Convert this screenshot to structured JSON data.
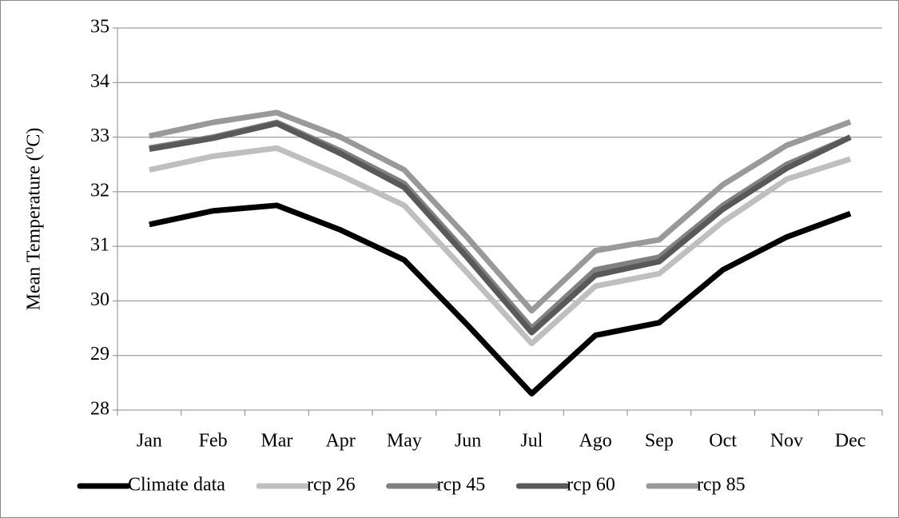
{
  "chart_data": {
    "type": "line",
    "y_label": "Mean Temperature (⁰C)",
    "categories": [
      "Jan",
      "Feb",
      "Mar",
      "Apr",
      "May",
      "Jun",
      "Jul",
      "Ago",
      "Sep",
      "Oct",
      "Nov",
      "Dec"
    ],
    "series": [
      {
        "name": "Climate data",
        "color": "#000000",
        "values": [
          31.4,
          31.65,
          31.75,
          31.3,
          30.75,
          29.55,
          28.3,
          29.37,
          29.6,
          30.57,
          31.17,
          31.6
        ]
      },
      {
        "name": "rcp 26",
        "color": "#bfbfbf",
        "values": [
          32.4,
          32.65,
          32.8,
          32.3,
          31.75,
          30.5,
          29.22,
          30.27,
          30.5,
          31.45,
          32.23,
          32.6
        ]
      },
      {
        "name": "rcp 45",
        "color": "#808080",
        "values": [
          32.8,
          33.0,
          33.27,
          32.75,
          32.15,
          30.85,
          29.5,
          30.57,
          30.8,
          31.75,
          32.5,
          33.0
        ]
      },
      {
        "name": "rcp 60",
        "color": "#595959",
        "values": [
          32.78,
          32.98,
          33.25,
          32.7,
          32.08,
          30.78,
          29.42,
          30.47,
          30.72,
          31.68,
          32.43,
          33.0
        ]
      },
      {
        "name": "rcp 85",
        "color": "#999999",
        "values": [
          33.02,
          33.27,
          33.45,
          33.0,
          32.4,
          31.15,
          29.82,
          30.92,
          31.12,
          32.13,
          32.85,
          33.28
        ]
      }
    ],
    "ylim": [
      28,
      35
    ],
    "yticks": [
      28,
      29,
      30,
      31,
      32,
      33,
      34,
      35
    ],
    "grid": true,
    "legend": "bottom"
  }
}
